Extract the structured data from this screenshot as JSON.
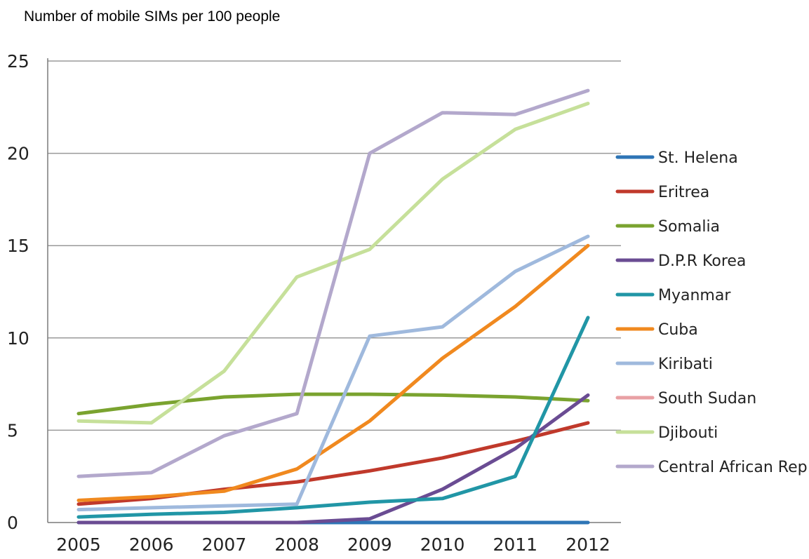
{
  "chart_data": {
    "type": "line",
    "title": "Number of mobile SIMs per 100 people",
    "xlabel": "",
    "ylabel": "",
    "x": [
      "2005",
      "2006",
      "2007",
      "2008",
      "2009",
      "2010",
      "2011",
      "2012"
    ],
    "ylim": [
      0,
      25
    ],
    "yticks": [
      "0",
      "5",
      "10",
      "15",
      "20",
      "25"
    ],
    "grid": "horizontal",
    "legend_position": "right",
    "series": [
      {
        "name": "St. Helena",
        "color": "#2e75b6",
        "values": [
          0,
          0,
          0,
          0,
          0,
          0,
          0,
          0
        ]
      },
      {
        "name": "Eritrea",
        "color": "#c0392b",
        "values": [
          1.0,
          1.3,
          1.8,
          2.2,
          2.8,
          3.5,
          4.4,
          5.4
        ]
      },
      {
        "name": "Somalia",
        "color": "#7aa32f",
        "values": [
          5.9,
          6.4,
          6.8,
          6.95,
          6.95,
          6.9,
          6.8,
          6.6
        ]
      },
      {
        "name": "D.P.R Korea",
        "color": "#6a4c93",
        "values": [
          0,
          0,
          0,
          0,
          0.2,
          1.8,
          4.0,
          6.9
        ]
      },
      {
        "name": "Myanmar",
        "color": "#2196a6",
        "values": [
          0.3,
          0.45,
          0.55,
          0.8,
          1.1,
          1.3,
          2.5,
          11.1
        ]
      },
      {
        "name": "Cuba",
        "color": "#f0891f",
        "values": [
          1.2,
          1.4,
          1.7,
          2.9,
          5.5,
          8.9,
          11.7,
          15.0
        ]
      },
      {
        "name": "Kiribati",
        "color": "#9fb9dd",
        "values": [
          0.7,
          0.8,
          0.9,
          1.0,
          10.1,
          10.6,
          13.6,
          15.5
        ]
      },
      {
        "name": "South Sudan",
        "color": "#e8a0a4",
        "values": [
          null,
          null,
          null,
          null,
          null,
          null,
          null,
          null
        ]
      },
      {
        "name": "Djibouti",
        "color": "#c6e09a",
        "values": [
          5.5,
          5.4,
          8.2,
          13.3,
          14.8,
          18.6,
          21.3,
          22.7
        ]
      },
      {
        "name": "Central African Rep.",
        "color": "#b3a8cc",
        "values": [
          2.5,
          2.7,
          4.7,
          5.9,
          20.0,
          22.2,
          22.1,
          23.4
        ]
      }
    ]
  }
}
